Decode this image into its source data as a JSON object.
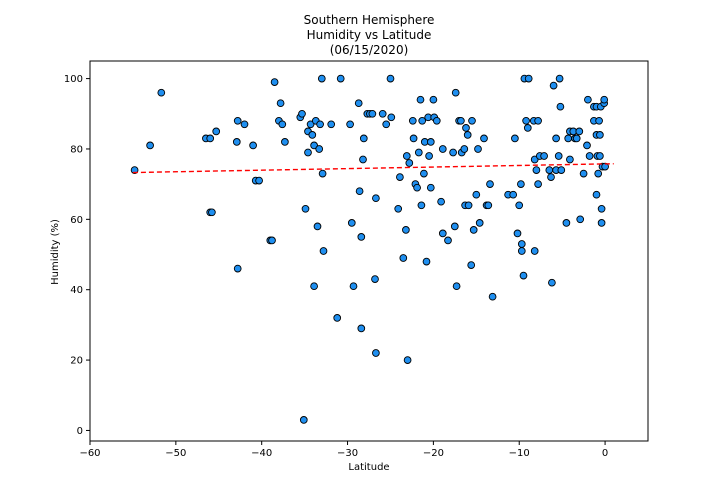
{
  "chart_data": {
    "type": "scatter",
    "title": [
      "Southern Hemisphere",
      "Humidity vs Latitude",
      "(06/15/2020)"
    ],
    "xlabel": "Latitude",
    "ylabel": "Humidity (%)",
    "xlim": [
      -60,
      5
    ],
    "ylim": [
      -3,
      105
    ],
    "xticks": [
      -60,
      -50,
      -40,
      -30,
      -20,
      -10,
      0
    ],
    "yticks": [
      0,
      20,
      40,
      60,
      80,
      100
    ],
    "grid": false,
    "legend": "none",
    "marker_color": "#1f8ff0",
    "marker_edge": "#000000",
    "regression": {
      "x": [
        -55,
        1
      ],
      "y": [
        73.3,
        75.8
      ],
      "color": "#ff0000",
      "style": "dashed"
    },
    "points": [
      [
        -54.8,
        74
      ],
      [
        -53,
        81
      ],
      [
        -51.7,
        96
      ],
      [
        -46.5,
        83
      ],
      [
        -46,
        83
      ],
      [
        -46,
        62
      ],
      [
        -45.8,
        62
      ],
      [
        -45.3,
        85
      ],
      [
        -42.8,
        88
      ],
      [
        -42.9,
        82
      ],
      [
        -42.8,
        46
      ],
      [
        -42,
        87
      ],
      [
        -41,
        81
      ],
      [
        -40.7,
        71
      ],
      [
        -40.3,
        71
      ],
      [
        -39,
        54
      ],
      [
        -38.8,
        54
      ],
      [
        -38.5,
        99
      ],
      [
        -38,
        88
      ],
      [
        -37.8,
        93
      ],
      [
        -37.6,
        87
      ],
      [
        -37.3,
        82
      ],
      [
        -35.5,
        89
      ],
      [
        -35.3,
        90
      ],
      [
        -35.1,
        3
      ],
      [
        -34.9,
        63
      ],
      [
        -34.6,
        85
      ],
      [
        -34.6,
        79
      ],
      [
        -34.3,
        87
      ],
      [
        -34.1,
        84
      ],
      [
        -33.9,
        41
      ],
      [
        -33.9,
        81
      ],
      [
        -33.7,
        88
      ],
      [
        -33.5,
        58
      ],
      [
        -33.3,
        80
      ],
      [
        -33.2,
        87
      ],
      [
        -33,
        100
      ],
      [
        -32.9,
        73
      ],
      [
        -32.8,
        51
      ],
      [
        -31.9,
        87
      ],
      [
        -31.2,
        32
      ],
      [
        -30.8,
        100
      ],
      [
        -29.7,
        87
      ],
      [
        -29.5,
        59
      ],
      [
        -29.3,
        41
      ],
      [
        -28.7,
        93
      ],
      [
        -28.6,
        68
      ],
      [
        -28.4,
        55
      ],
      [
        -28.4,
        29
      ],
      [
        -28.2,
        77
      ],
      [
        -28.1,
        83
      ],
      [
        -27.7,
        90
      ],
      [
        -27.4,
        90
      ],
      [
        -27.1,
        90
      ],
      [
        -26.8,
        43
      ],
      [
        -26.7,
        66
      ],
      [
        -26.7,
        22
      ],
      [
        -25.9,
        90
      ],
      [
        -25.5,
        87
      ],
      [
        -25,
        100
      ],
      [
        -24.9,
        89
      ],
      [
        -24.1,
        63
      ],
      [
        -23.9,
        72
      ],
      [
        -23.5,
        49
      ],
      [
        -23.2,
        57
      ],
      [
        -23.1,
        78
      ],
      [
        -23,
        20
      ],
      [
        -22.8,
        76
      ],
      [
        -22.4,
        88
      ],
      [
        -22.3,
        83
      ],
      [
        -22.1,
        70
      ],
      [
        -21.9,
        69
      ],
      [
        -21.7,
        79
      ],
      [
        -21.5,
        94
      ],
      [
        -21.4,
        64
      ],
      [
        -21.3,
        88
      ],
      [
        -21.1,
        73
      ],
      [
        -21,
        82
      ],
      [
        -20.8,
        48
      ],
      [
        -20.6,
        89
      ],
      [
        -20.5,
        78
      ],
      [
        -20.3,
        69
      ],
      [
        -20.3,
        82
      ],
      [
        -20,
        94
      ],
      [
        -19.9,
        89
      ],
      [
        -19.6,
        88
      ],
      [
        -19.1,
        65
      ],
      [
        -18.9,
        80
      ],
      [
        -18.9,
        56
      ],
      [
        -18.3,
        54
      ],
      [
        -17.7,
        79
      ],
      [
        -17.5,
        58
      ],
      [
        -17.4,
        96
      ],
      [
        -17.3,
        41
      ],
      [
        -17,
        88
      ],
      [
        -16.8,
        88
      ],
      [
        -16.7,
        79
      ],
      [
        -16.4,
        80
      ],
      [
        -16.3,
        64
      ],
      [
        -16.2,
        86
      ],
      [
        -16,
        84
      ],
      [
        -15.9,
        64
      ],
      [
        -15.6,
        47
      ],
      [
        -15.5,
        88
      ],
      [
        -15.3,
        57
      ],
      [
        -15,
        67
      ],
      [
        -14.8,
        80
      ],
      [
        -14.6,
        59
      ],
      [
        -14.1,
        83
      ],
      [
        -13.8,
        64
      ],
      [
        -13.6,
        64
      ],
      [
        -13.4,
        70
      ],
      [
        -13.1,
        38
      ],
      [
        -11.3,
        67
      ],
      [
        -10.7,
        67
      ],
      [
        -10.5,
        83
      ],
      [
        -10.2,
        56
      ],
      [
        -10,
        64
      ],
      [
        -9.8,
        70
      ],
      [
        -9.7,
        53
      ],
      [
        -9.7,
        51
      ],
      [
        -9.5,
        44
      ],
      [
        -9.4,
        100
      ],
      [
        -9.2,
        88
      ],
      [
        -9,
        86
      ],
      [
        -8.9,
        100
      ],
      [
        -8.3,
        88
      ],
      [
        -8.2,
        51
      ],
      [
        -8.2,
        77
      ],
      [
        -8,
        74
      ],
      [
        -7.8,
        88
      ],
      [
        -7.8,
        70
      ],
      [
        -7.6,
        78
      ],
      [
        -7.1,
        78
      ],
      [
        -6.5,
        74
      ],
      [
        -6.3,
        72
      ],
      [
        -6.2,
        42
      ],
      [
        -6,
        98
      ],
      [
        -5.7,
        83
      ],
      [
        -5.7,
        74
      ],
      [
        -5.4,
        78
      ],
      [
        -5.3,
        100
      ],
      [
        -5.2,
        92
      ],
      [
        -5.1,
        74
      ],
      [
        -4.5,
        59
      ],
      [
        -4.3,
        83
      ],
      [
        -4.1,
        85
      ],
      [
        -4.1,
        77
      ],
      [
        -3.7,
        85
      ],
      [
        -3.5,
        83
      ],
      [
        -3.3,
        83
      ],
      [
        -3,
        85
      ],
      [
        -2.9,
        60
      ],
      [
        -2.5,
        73
      ],
      [
        -2.1,
        81
      ],
      [
        -2,
        94
      ],
      [
        -1.8,
        78
      ],
      [
        -1.3,
        92
      ],
      [
        -1.3,
        88
      ],
      [
        -1,
        92
      ],
      [
        -1,
        84
      ],
      [
        -1,
        67
      ],
      [
        -0.9,
        78
      ],
      [
        -0.8,
        73
      ],
      [
        -0.7,
        88
      ],
      [
        -0.6,
        78
      ],
      [
        -0.6,
        84
      ],
      [
        -0.5,
        92
      ],
      [
        -0.4,
        63
      ],
      [
        -0.4,
        59
      ],
      [
        -0.3,
        75
      ],
      [
        -0.1,
        93
      ],
      [
        -0.1,
        94
      ],
      [
        0,
        75
      ]
    ]
  }
}
